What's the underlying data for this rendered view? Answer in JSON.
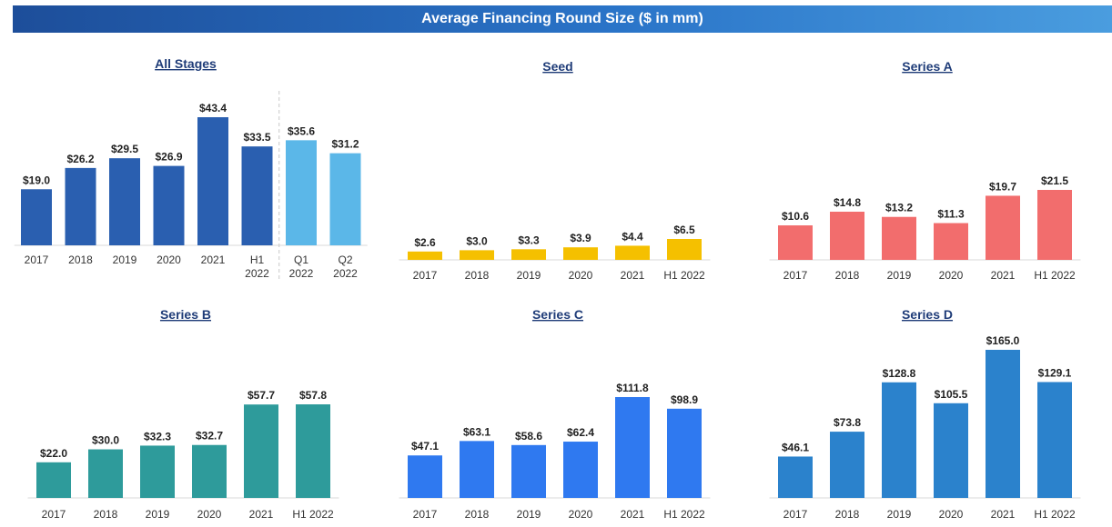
{
  "header": {
    "title": "Average Financing Round Size ($ in mm)"
  },
  "chart_data": [
    {
      "type": "bar",
      "title": "All Stages",
      "categories": [
        [
          "2017"
        ],
        [
          "2018"
        ],
        [
          "2019"
        ],
        [
          "2020"
        ],
        [
          "2021"
        ],
        [
          "H1",
          "2022"
        ],
        [
          "Q1",
          "2022"
        ],
        [
          "Q2",
          "2022"
        ]
      ],
      "values": [
        19.0,
        26.2,
        29.5,
        26.9,
        43.4,
        33.5,
        35.6,
        31.2
      ],
      "labels": [
        "$19.0",
        "$26.2",
        "$29.5",
        "$26.9",
        "$43.4",
        "$33.5",
        "$35.6",
        "$31.2"
      ],
      "colors": [
        "#2a5fb0",
        "#2a5fb0",
        "#2a5fb0",
        "#2a5fb0",
        "#2a5fb0",
        "#2a5fb0",
        "#5bb7e8",
        "#5bb7e8"
      ],
      "divider_after_index": 5,
      "ylim": [
        0,
        43.4
      ]
    },
    {
      "type": "bar",
      "title": "Seed",
      "categories": [
        [
          "2017"
        ],
        [
          "2018"
        ],
        [
          "2019"
        ],
        [
          "2020"
        ],
        [
          "2021"
        ],
        [
          "H1 2022"
        ]
      ],
      "values": [
        2.6,
        3.0,
        3.3,
        3.9,
        4.4,
        6.5
      ],
      "labels": [
        "$2.6",
        "$3.0",
        "$3.3",
        "$3.9",
        "$4.4",
        "$6.5"
      ],
      "colors": [
        "#f5c000",
        "#f5c000",
        "#f5c000",
        "#f5c000",
        "#f5c000",
        "#f5c000"
      ]
    },
    {
      "type": "bar",
      "title": "Series A",
      "categories": [
        [
          "2017"
        ],
        [
          "2018"
        ],
        [
          "2019"
        ],
        [
          "2020"
        ],
        [
          "2021"
        ],
        [
          "H1 2022"
        ]
      ],
      "values": [
        10.6,
        14.8,
        13.2,
        11.3,
        19.7,
        21.5
      ],
      "labels": [
        "$10.6",
        "$14.8",
        "$13.2",
        "$11.3",
        "$19.7",
        "$21.5"
      ],
      "colors": [
        "#f26d6d",
        "#f26d6d",
        "#f26d6d",
        "#f26d6d",
        "#f26d6d",
        "#f26d6d"
      ]
    },
    {
      "type": "bar",
      "title": "Series B",
      "categories": [
        [
          "2017"
        ],
        [
          "2018"
        ],
        [
          "2019"
        ],
        [
          "2020"
        ],
        [
          "2021"
        ],
        [
          "H1 2022"
        ]
      ],
      "values": [
        22.0,
        30.0,
        32.3,
        32.7,
        57.7,
        57.8
      ],
      "labels": [
        "$22.0",
        "$30.0",
        "$32.3",
        "$32.7",
        "$57.7",
        "$57.8"
      ],
      "colors": [
        "#2e9b9b",
        "#2e9b9b",
        "#2e9b9b",
        "#2e9b9b",
        "#2e9b9b",
        "#2e9b9b"
      ]
    },
    {
      "type": "bar",
      "title": "Series C",
      "categories": [
        [
          "2017"
        ],
        [
          "2018"
        ],
        [
          "2019"
        ],
        [
          "2020"
        ],
        [
          "2021"
        ],
        [
          "H1 2022"
        ]
      ],
      "values": [
        47.1,
        63.1,
        58.6,
        62.4,
        111.8,
        98.9
      ],
      "labels": [
        "$47.1",
        "$63.1",
        "$58.6",
        "$62.4",
        "$111.8",
        "$98.9"
      ],
      "colors": [
        "#2f79f0",
        "#2f79f0",
        "#2f79f0",
        "#2f79f0",
        "#2f79f0",
        "#2f79f0"
      ]
    },
    {
      "type": "bar",
      "title": "Series D",
      "categories": [
        [
          "2017"
        ],
        [
          "2018"
        ],
        [
          "2019"
        ],
        [
          "2020"
        ],
        [
          "2021"
        ],
        [
          "H1 2022"
        ]
      ],
      "values": [
        46.1,
        73.8,
        128.8,
        105.5,
        165.0,
        129.1
      ],
      "labels": [
        "$46.1",
        "$73.8",
        "$128.8",
        "$105.5",
        "$165.0",
        "$129.1"
      ],
      "colors": [
        "#2b82cc",
        "#2b82cc",
        "#2b82cc",
        "#2b82cc",
        "#2b82cc",
        "#2b82cc"
      ]
    }
  ]
}
